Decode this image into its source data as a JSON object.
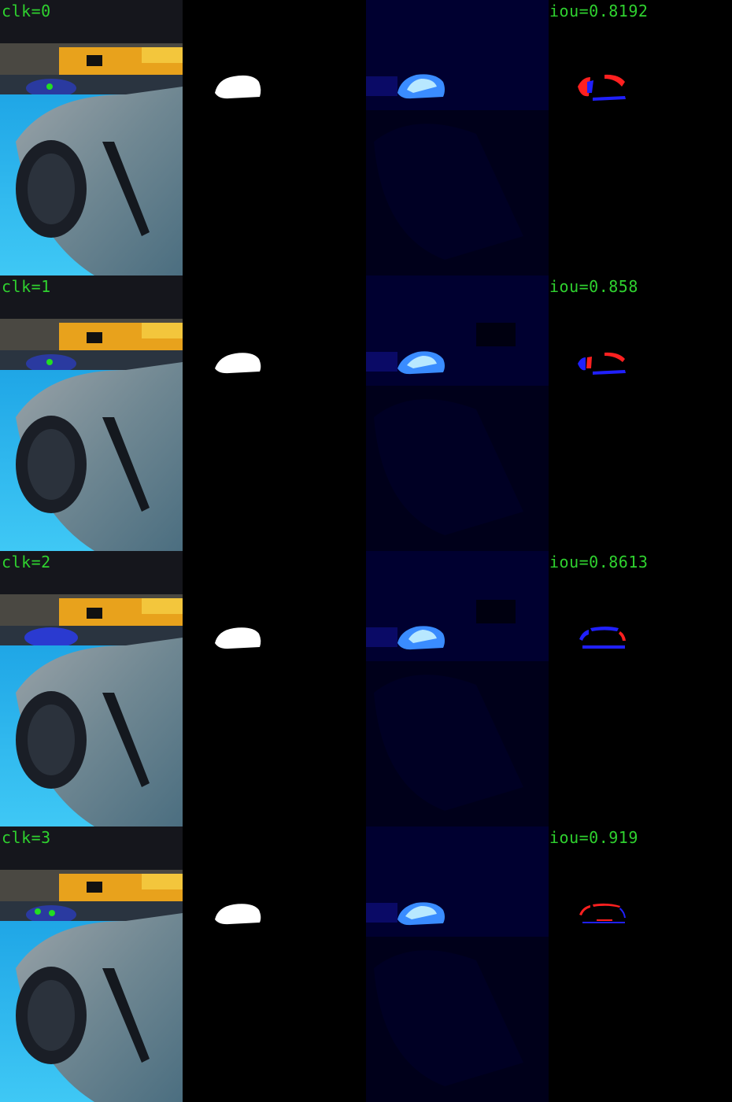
{
  "colors": {
    "label_green": "#2fd12f",
    "click_point": "#22dd22",
    "false_positive": "#ff2020",
    "false_negative": "#2020ff"
  },
  "rows": [
    {
      "click_label": "clk=0",
      "iou_label": "iou=0.8192"
    },
    {
      "click_label": "clk=1",
      "iou_label": "iou=0.858"
    },
    {
      "click_label": "clk=2",
      "iou_label": "iou=0.8613"
    },
    {
      "click_label": "clk=3",
      "iou_label": "iou=0.919"
    }
  ]
}
